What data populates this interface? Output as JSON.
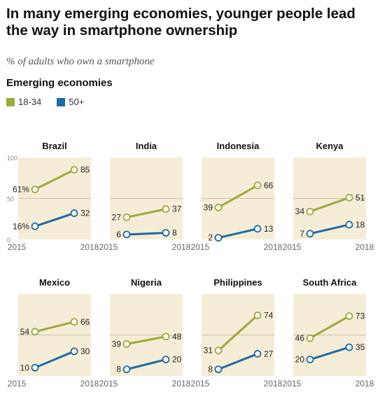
{
  "title": "In many emerging economies, younger people lead the way in smartphone ownership",
  "subtitle": "% of adults who own a smartphone",
  "group_label": "Emerging economies",
  "colors": {
    "young": "#9aaa3c",
    "old": "#1d6aa5",
    "panel": "#f5edd7",
    "baseline": "#c9c0a8"
  },
  "legend": [
    {
      "label": "18-34",
      "color": "#9aaa3c"
    },
    {
      "label": "50+",
      "color": "#1d6aa5"
    }
  ],
  "chart_data": {
    "type": "line",
    "x": [
      "2015",
      "2018"
    ],
    "ylim": [
      0,
      100
    ],
    "y_ticks": [
      "0",
      "50",
      "100"
    ],
    "legend_position": "top-left",
    "series_names": [
      "18-34",
      "50+"
    ],
    "panels": [
      {
        "country": "Brazil",
        "young": [
          61,
          85
        ],
        "old": [
          16,
          32
        ],
        "young_labels": [
          "61%",
          "85"
        ],
        "old_labels": [
          "16%",
          "32"
        ]
      },
      {
        "country": "India",
        "young": [
          27,
          37
        ],
        "old": [
          6,
          8
        ],
        "young_labels": [
          "27",
          "37"
        ],
        "old_labels": [
          "6",
          "8"
        ]
      },
      {
        "country": "Indonesia",
        "young": [
          39,
          66
        ],
        "old": [
          2,
          13
        ],
        "young_labels": [
          "39",
          "66"
        ],
        "old_labels": [
          "2",
          "13"
        ]
      },
      {
        "country": "Kenya",
        "young": [
          34,
          51
        ],
        "old": [
          7,
          18
        ],
        "young_labels": [
          "34",
          "51"
        ],
        "old_labels": [
          "7",
          "18"
        ]
      },
      {
        "country": "Mexico",
        "young": [
          54,
          66
        ],
        "old": [
          10,
          30
        ],
        "young_labels": [
          "54",
          "66"
        ],
        "old_labels": [
          "10",
          "30"
        ]
      },
      {
        "country": "Nigeria",
        "young": [
          39,
          48
        ],
        "old": [
          8,
          20
        ],
        "young_labels": [
          "39",
          "48"
        ],
        "old_labels": [
          "8",
          "20"
        ]
      },
      {
        "country": "Philippines",
        "young": [
          31,
          74
        ],
        "old": [
          8,
          27
        ],
        "young_labels": [
          "31",
          "74"
        ],
        "old_labels": [
          "8",
          "27"
        ]
      },
      {
        "country": "South Africa",
        "young": [
          46,
          73
        ],
        "old": [
          20,
          35
        ],
        "young_labels": [
          "46",
          "73"
        ],
        "old_labels": [
          "20",
          "35"
        ]
      }
    ]
  }
}
